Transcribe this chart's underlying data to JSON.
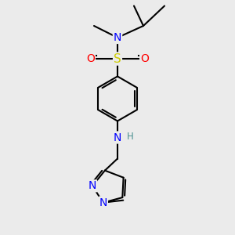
{
  "bg_color": "#ebebeb",
  "atom_colors": {
    "C": "#000000",
    "N": "#0000ff",
    "O": "#ff0000",
    "S": "#cccc00",
    "H": "#4a9090"
  },
  "bond_color": "#000000",
  "bond_width": 1.5,
  "font_size_atom": 10,
  "font_size_h": 8.5
}
